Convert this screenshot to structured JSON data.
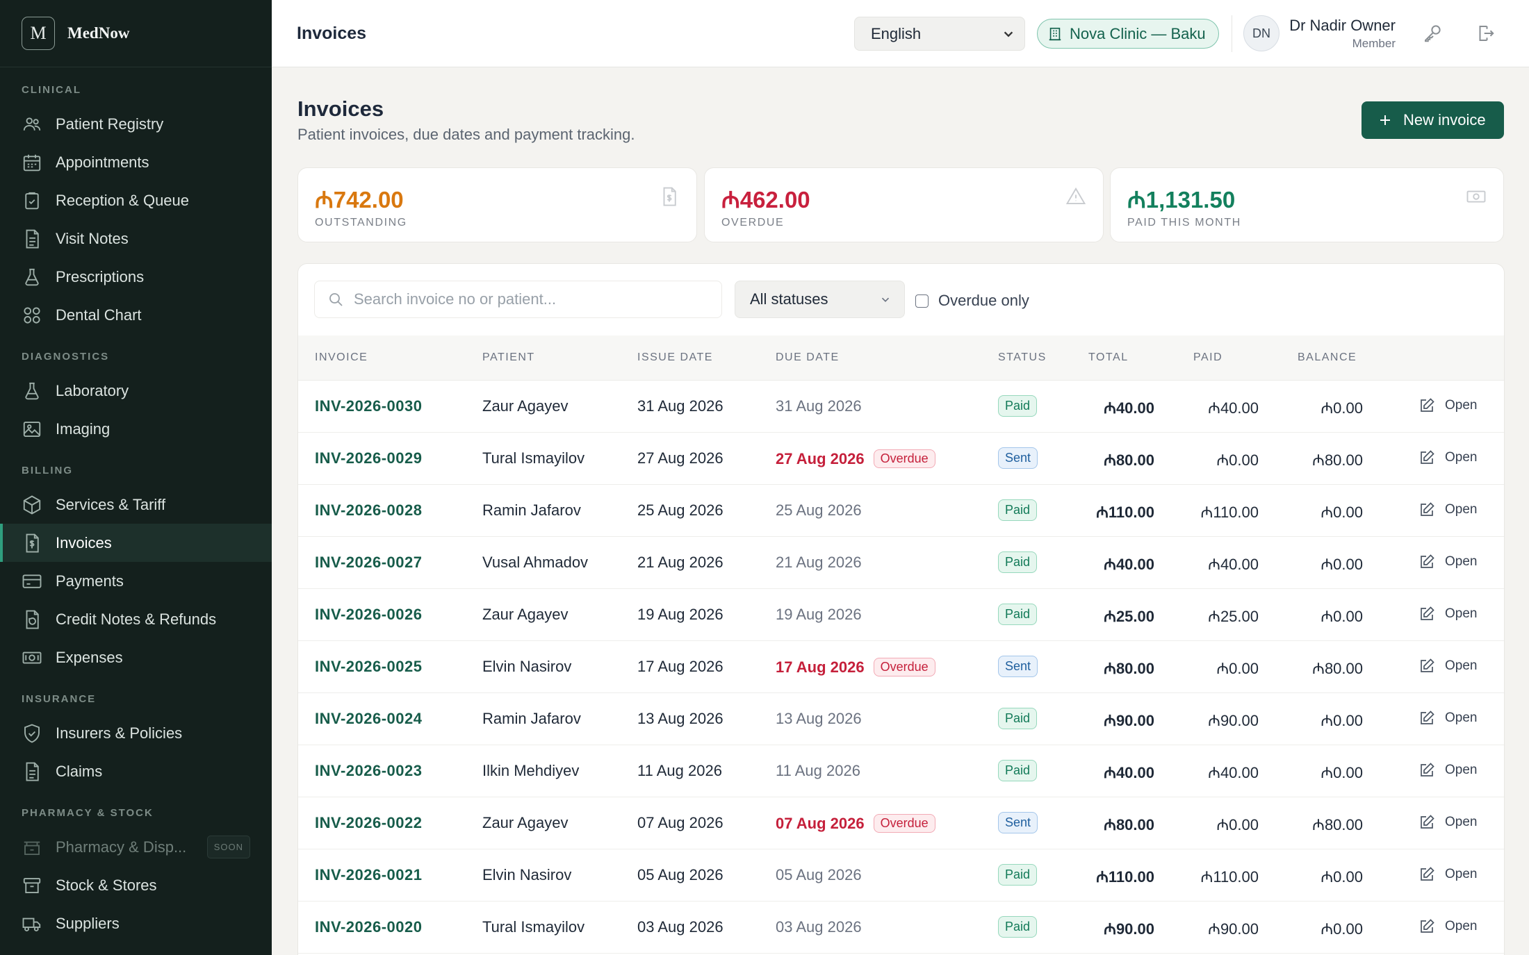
{
  "brand": {
    "logo_letter": "M",
    "name": "MedNow"
  },
  "sidebar": {
    "sections": [
      {
        "title": "CLINICAL",
        "items": [
          {
            "label": "Patient Registry",
            "icon": "users-icon"
          },
          {
            "label": "Appointments",
            "icon": "calendar-icon"
          },
          {
            "label": "Reception & Queue",
            "icon": "clipboard-icon"
          },
          {
            "label": "Visit Notes",
            "icon": "document-icon"
          },
          {
            "label": "Prescriptions",
            "icon": "flask-icon"
          },
          {
            "label": "Dental Chart",
            "icon": "grid-icon"
          }
        ]
      },
      {
        "title": "DIAGNOSTICS",
        "items": [
          {
            "label": "Laboratory",
            "icon": "flask-icon"
          },
          {
            "label": "Imaging",
            "icon": "image-icon"
          }
        ]
      },
      {
        "title": "BILLING",
        "items": [
          {
            "label": "Services & Tariff",
            "icon": "box-icon"
          },
          {
            "label": "Invoices",
            "icon": "invoice-icon",
            "active": true
          },
          {
            "label": "Payments",
            "icon": "card-icon"
          },
          {
            "label": "Credit Notes & Refunds",
            "icon": "refund-icon"
          },
          {
            "label": "Expenses",
            "icon": "cash-icon"
          }
        ]
      },
      {
        "title": "INSURANCE",
        "items": [
          {
            "label": "Insurers & Policies",
            "icon": "shield-icon"
          },
          {
            "label": "Claims",
            "icon": "document-icon"
          }
        ]
      },
      {
        "title": "PHARMACY & STOCK",
        "items": [
          {
            "label": "Pharmacy & Disp...",
            "icon": "pharmacy-icon",
            "disabled": true,
            "badge": "SOON"
          },
          {
            "label": "Stock & Stores",
            "icon": "archive-icon"
          },
          {
            "label": "Suppliers",
            "icon": "truck-icon"
          }
        ]
      }
    ]
  },
  "topbar": {
    "title": "Invoices",
    "language": "English",
    "clinic": "Nova Clinic — Baku",
    "user_initials": "DN",
    "user_name": "Dr Nadir Owner",
    "user_role": "Member"
  },
  "page": {
    "title": "Invoices",
    "subtitle": "Patient invoices, due dates and payment tracking.",
    "new_button": "New invoice"
  },
  "stats": [
    {
      "value": "₼742.00",
      "label": "OUTSTANDING",
      "color": "#d9780f",
      "icon": "invoice-icon"
    },
    {
      "value": "₼462.00",
      "label": "OVERDUE",
      "color": "#c8203d",
      "icon": "warning-icon"
    },
    {
      "value": "₼1,131.50",
      "label": "PAID THIS MONTH",
      "color": "#13805d",
      "icon": "cash-icon"
    }
  ],
  "filters": {
    "search_placeholder": "Search invoice no or patient...",
    "status_value": "All statuses",
    "overdue_label": "Overdue only"
  },
  "table": {
    "columns": [
      "INVOICE",
      "PATIENT",
      "ISSUE DATE",
      "DUE DATE",
      "STATUS",
      "TOTAL",
      "PAID",
      "BALANCE"
    ],
    "open_label": "Open",
    "overdue_badge": "Overdue",
    "rows": [
      {
        "invoice": "INV-2026-0030",
        "patient": "Zaur Agayev",
        "issue": "31 Aug 2026",
        "due": "31 Aug 2026",
        "overdue": false,
        "status": "Paid",
        "total": "₼40.00",
        "paid": "₼40.00",
        "balance": "₼0.00"
      },
      {
        "invoice": "INV-2026-0029",
        "patient": "Tural Ismayilov",
        "issue": "27 Aug 2026",
        "due": "27 Aug 2026",
        "overdue": true,
        "status": "Sent",
        "total": "₼80.00",
        "paid": "₼0.00",
        "balance": "₼80.00"
      },
      {
        "invoice": "INV-2026-0028",
        "patient": "Ramin Jafarov",
        "issue": "25 Aug 2026",
        "due": "25 Aug 2026",
        "overdue": false,
        "status": "Paid",
        "total": "₼110.00",
        "paid": "₼110.00",
        "balance": "₼0.00"
      },
      {
        "invoice": "INV-2026-0027",
        "patient": "Vusal Ahmadov",
        "issue": "21 Aug 2026",
        "due": "21 Aug 2026",
        "overdue": false,
        "status": "Paid",
        "total": "₼40.00",
        "paid": "₼40.00",
        "balance": "₼0.00"
      },
      {
        "invoice": "INV-2026-0026",
        "patient": "Zaur Agayev",
        "issue": "19 Aug 2026",
        "due": "19 Aug 2026",
        "overdue": false,
        "status": "Paid",
        "total": "₼25.00",
        "paid": "₼25.00",
        "balance": "₼0.00"
      },
      {
        "invoice": "INV-2026-0025",
        "patient": "Elvin Nasirov",
        "issue": "17 Aug 2026",
        "due": "17 Aug 2026",
        "overdue": true,
        "status": "Sent",
        "total": "₼80.00",
        "paid": "₼0.00",
        "balance": "₼80.00"
      },
      {
        "invoice": "INV-2026-0024",
        "patient": "Ramin Jafarov",
        "issue": "13 Aug 2026",
        "due": "13 Aug 2026",
        "overdue": false,
        "status": "Paid",
        "total": "₼90.00",
        "paid": "₼90.00",
        "balance": "₼0.00"
      },
      {
        "invoice": "INV-2026-0023",
        "patient": "Ilkin Mehdiyev",
        "issue": "11 Aug 2026",
        "due": "11 Aug 2026",
        "overdue": false,
        "status": "Paid",
        "total": "₼40.00",
        "paid": "₼40.00",
        "balance": "₼0.00"
      },
      {
        "invoice": "INV-2026-0022",
        "patient": "Zaur Agayev",
        "issue": "07 Aug 2026",
        "due": "07 Aug 2026",
        "overdue": true,
        "status": "Sent",
        "total": "₼80.00",
        "paid": "₼0.00",
        "balance": "₼80.00"
      },
      {
        "invoice": "INV-2026-0021",
        "patient": "Elvin Nasirov",
        "issue": "05 Aug 2026",
        "due": "05 Aug 2026",
        "overdue": false,
        "status": "Paid",
        "total": "₼110.00",
        "paid": "₼110.00",
        "balance": "₼0.00"
      },
      {
        "invoice": "INV-2026-0020",
        "patient": "Tural Ismayilov",
        "issue": "03 Aug 2026",
        "due": "03 Aug 2026",
        "overdue": false,
        "status": "Paid",
        "total": "₼90.00",
        "paid": "₼90.00",
        "balance": "₼0.00"
      }
    ]
  }
}
